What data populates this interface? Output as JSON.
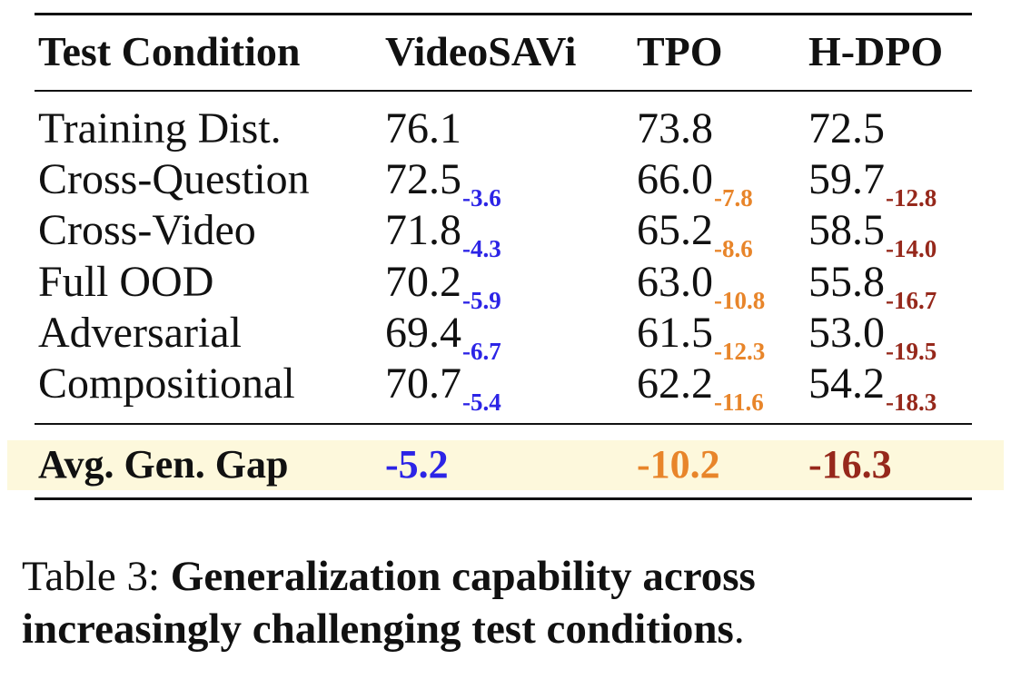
{
  "headers": [
    "Test Condition",
    "VideoSAVi",
    "TPO",
    "H-DPO"
  ],
  "rows": [
    {
      "condition": "Training Dist.",
      "videosavi": "76.1",
      "videosavi_delta": "",
      "tpo": "73.8",
      "tpo_delta": "",
      "hdpo": "72.5",
      "hdpo_delta": ""
    },
    {
      "condition": "Cross-Question",
      "videosavi": "72.5",
      "videosavi_delta": "-3.6",
      "tpo": "66.0",
      "tpo_delta": "-7.8",
      "hdpo": "59.7",
      "hdpo_delta": "-12.8"
    },
    {
      "condition": "Cross-Video",
      "videosavi": "71.8",
      "videosavi_delta": "-4.3",
      "tpo": "65.2",
      "tpo_delta": "-8.6",
      "hdpo": "58.5",
      "hdpo_delta": "-14.0"
    },
    {
      "condition": "Full OOD",
      "videosavi": "70.2",
      "videosavi_delta": "-5.9",
      "tpo": "63.0",
      "tpo_delta": "-10.8",
      "hdpo": "55.8",
      "hdpo_delta": "-16.7"
    },
    {
      "condition": "Adversarial",
      "videosavi": "69.4",
      "videosavi_delta": "-6.7",
      "tpo": "61.5",
      "tpo_delta": "-12.3",
      "hdpo": "53.0",
      "hdpo_delta": "-19.5"
    },
    {
      "condition": "Compositional",
      "videosavi": "70.7",
      "videosavi_delta": "-5.4",
      "tpo": "62.2",
      "tpo_delta": "-11.6",
      "hdpo": "54.2",
      "hdpo_delta": "-18.3"
    }
  ],
  "summary": {
    "label": "Avg. Gen. Gap",
    "videosavi": "-5.2",
    "tpo": "-10.2",
    "hdpo": "-16.3"
  },
  "colors": {
    "videosavi": "#2c24e6",
    "tpo": "#e8852a",
    "hdpo": "#96281b",
    "highlight": "#fdf8dc"
  },
  "caption": {
    "prefix": "Table 3:",
    "bold_line1": "Generalization capability across",
    "bold_line2": "increasingly challenging test conditions",
    "suffix": "."
  }
}
